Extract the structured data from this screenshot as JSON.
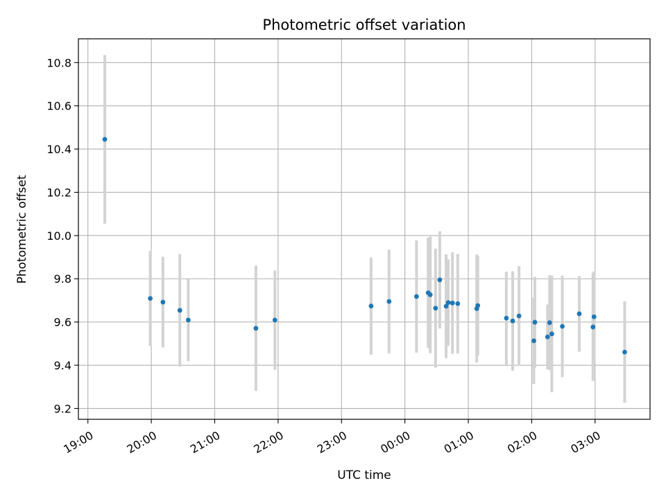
{
  "chart_data": {
    "type": "scatter",
    "title": "Photometric offset variation",
    "xlabel": "UTC time",
    "ylabel": "Photometric offset",
    "x_unit": "hours",
    "x_origin_label": "19:00",
    "xlim": [
      "18:51",
      "03:52"
    ],
    "ylim": [
      9.15,
      10.91
    ],
    "x_ticks": [
      "19:00",
      "20:00",
      "21:00",
      "22:00",
      "23:00",
      "00:00",
      "01:00",
      "02:00",
      "03:00"
    ],
    "y_ticks": [
      "9.2",
      "9.4",
      "9.6",
      "9.8",
      "10.0",
      "10.2",
      "10.4",
      "10.6",
      "10.8"
    ],
    "grid": true,
    "colors": {
      "points": "#1f77b4",
      "errorbars": "#d3d3d3",
      "grid": "#b0b0b0"
    },
    "points": [
      {
        "time": "19:16",
        "y": 10.445,
        "err": 0.39
      },
      {
        "time": "19:59",
        "y": 9.709,
        "err": 0.22
      },
      {
        "time": "20:11",
        "y": 9.692,
        "err": 0.21
      },
      {
        "time": "20:27",
        "y": 9.654,
        "err": 0.26
      },
      {
        "time": "20:35",
        "y": 9.609,
        "err": 0.19
      },
      {
        "time": "21:39",
        "y": 9.571,
        "err": 0.29
      },
      {
        "time": "21:57",
        "y": 9.609,
        "err": 0.23
      },
      {
        "time": "23:28",
        "y": 9.674,
        "err": 0.225
      },
      {
        "time": "23:45",
        "y": 9.695,
        "err": 0.24
      },
      {
        "time": "00:11",
        "y": 9.718,
        "err": 0.26
      },
      {
        "time": "00:22",
        "y": 9.735,
        "err": 0.255
      },
      {
        "time": "00:24",
        "y": 9.726,
        "err": 0.27
      },
      {
        "time": "00:29",
        "y": 9.664,
        "err": 0.275
      },
      {
        "time": "00:33",
        "y": 9.795,
        "err": 0.225
      },
      {
        "time": "00:39",
        "y": 9.673,
        "err": 0.24
      },
      {
        "time": "00:41",
        "y": 9.69,
        "err": 0.2
      },
      {
        "time": "00:45",
        "y": 9.688,
        "err": 0.235
      },
      {
        "time": "00:50",
        "y": 9.685,
        "err": 0.23
      },
      {
        "time": "01:08",
        "y": 9.662,
        "err": 0.25
      },
      {
        "time": "01:09",
        "y": 9.676,
        "err": 0.23
      },
      {
        "time": "01:36",
        "y": 9.618,
        "err": 0.215
      },
      {
        "time": "01:42",
        "y": 9.605,
        "err": 0.23
      },
      {
        "time": "01:48",
        "y": 9.628,
        "err": 0.23
      },
      {
        "time": "02:02",
        "y": 9.513,
        "err": 0.2
      },
      {
        "time": "02:03",
        "y": 9.599,
        "err": 0.21
      },
      {
        "time": "02:15",
        "y": 9.531,
        "err": 0.15
      },
      {
        "time": "02:17",
        "y": 9.597,
        "err": 0.22
      },
      {
        "time": "02:19",
        "y": 9.545,
        "err": 0.27
      },
      {
        "time": "02:29",
        "y": 9.58,
        "err": 0.235
      },
      {
        "time": "02:45",
        "y": 9.638,
        "err": 0.175
      },
      {
        "time": "02:58",
        "y": 9.577,
        "err": 0.25
      },
      {
        "time": "02:59",
        "y": 9.624,
        "err": 0.21
      },
      {
        "time": "03:28",
        "y": 9.461,
        "err": 0.235
      }
    ]
  }
}
